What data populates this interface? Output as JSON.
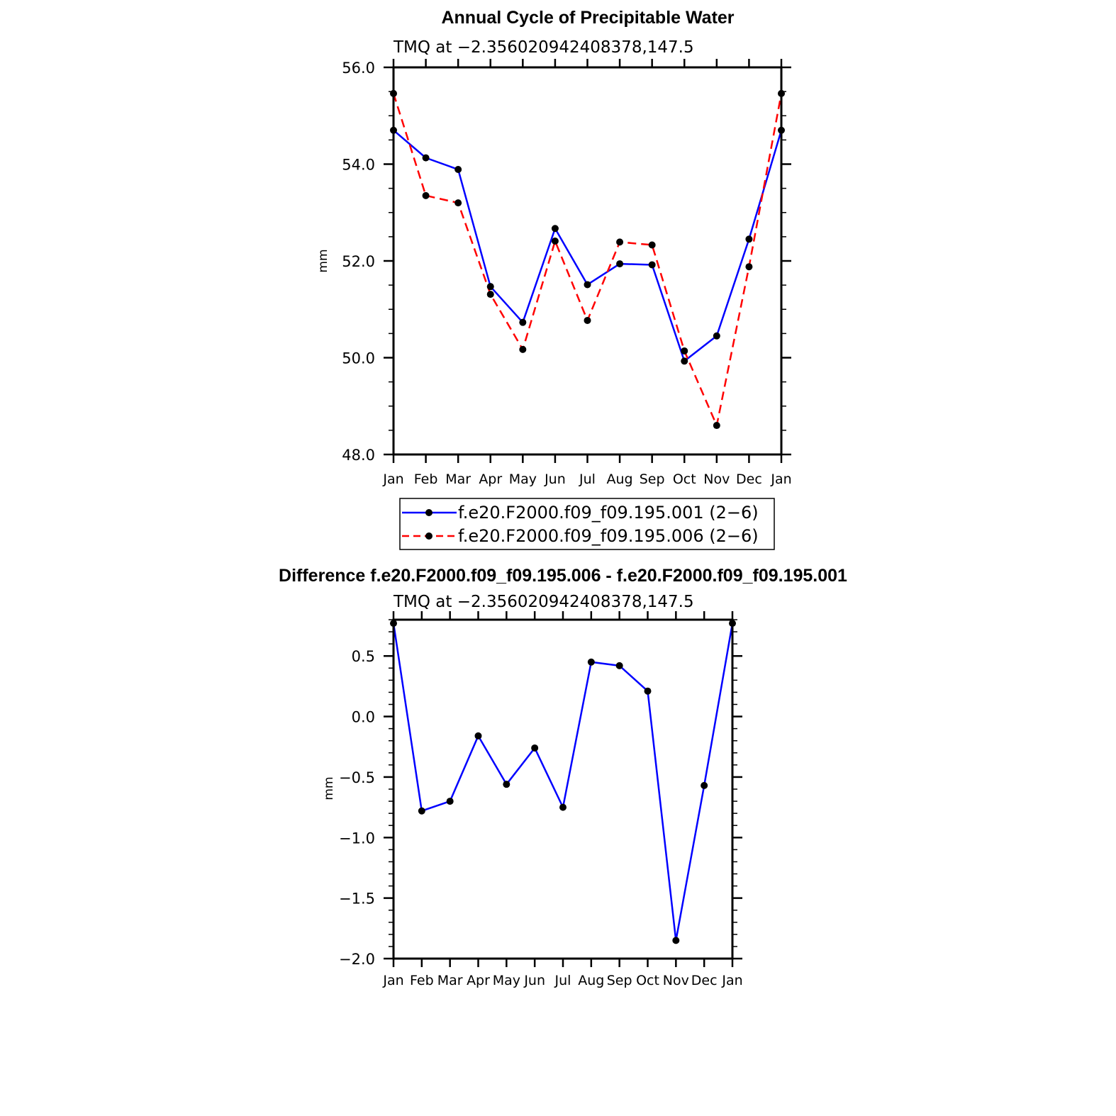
{
  "colors": {
    "series_1": "#0000ff",
    "series_2": "#ff0000",
    "difference": "#0000ff",
    "markers": "#000000",
    "axes": "#000000"
  },
  "chart_data": [
    {
      "type": "line",
      "title": "Annual Cycle of Precipitable Water",
      "subtitle": "TMQ  at  −2.356020942408378,147.5",
      "xlabel": "",
      "ylabel": "mm",
      "categories": [
        "Jan",
        "Feb",
        "Mar",
        "Apr",
        "May",
        "Jun",
        "Jul",
        "Aug",
        "Sep",
        "Oct",
        "Nov",
        "Dec",
        "Jan"
      ],
      "ylim": [
        48.0,
        56.0
      ],
      "yticks": [
        "48.0",
        "50.0",
        "52.0",
        "54.0",
        "56.0"
      ],
      "series": [
        {
          "name": "f.e20.F2000.f09_f09.195.001 (2−6)",
          "style": "solid",
          "values": [
            54.7,
            54.13,
            53.89,
            51.47,
            50.73,
            52.67,
            51.51,
            51.94,
            51.92,
            49.93,
            50.45,
            52.45,
            54.7
          ]
        },
        {
          "name": "f.e20.F2000.f09_f09.195.006 (2−6)",
          "style": "dashed",
          "values": [
            55.46,
            53.35,
            53.2,
            51.31,
            50.17,
            52.41,
            50.77,
            52.39,
            52.33,
            50.14,
            48.6,
            51.88,
            55.46
          ]
        }
      ],
      "legend": "below"
    },
    {
      "type": "line",
      "title": "Difference f.e20.F2000.f09_f09.195.006 - f.e20.F2000.f09_f09.195.001",
      "subtitle": "TMQ  at  −2.356020942408378,147.5",
      "xlabel": "",
      "ylabel": "mm",
      "categories": [
        "Jan",
        "Feb",
        "Mar",
        "Apr",
        "May",
        "Jun",
        "Jul",
        "Aug",
        "Sep",
        "Oct",
        "Nov",
        "Dec",
        "Jan"
      ],
      "ylim": [
        -2.0,
        0.8
      ],
      "yticks": [
        "−2.0",
        "−1.5",
        "−1.0",
        "−0.5",
        "0.0",
        "0.5"
      ],
      "ytick_values": [
        -2.0,
        -1.5,
        -1.0,
        -0.5,
        0.0,
        0.5
      ],
      "series": [
        {
          "name": "difference",
          "style": "solid",
          "values": [
            0.77,
            -0.78,
            -0.7,
            -0.16,
            -0.56,
            -0.26,
            -0.75,
            0.45,
            0.42,
            0.21,
            -1.85,
            -0.57,
            0.77
          ]
        }
      ]
    }
  ]
}
